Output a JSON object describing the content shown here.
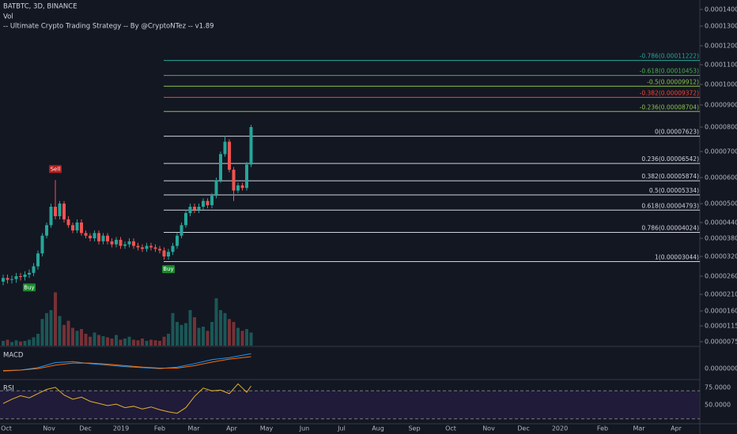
{
  "header": {
    "symbol": "BATBTC, 3D, BINANCE",
    "volume_label": "Vol",
    "strategy": "-- Ultimate Crypto Trading Strategy -- By @CryptoNTez -- v1.89"
  },
  "chart_data": {
    "type": "candlestick",
    "up_color": "#26a69a",
    "down_color": "#ef5350",
    "x_labels": [
      "Oct",
      "Nov",
      "Dec",
      "2019",
      "Feb",
      "Mar",
      "Apr",
      "May",
      "Jun",
      "Jul",
      "Aug",
      "Sep",
      "Oct",
      "Nov",
      "Dec",
      "2020",
      "Feb",
      "Mar",
      "Apr"
    ],
    "open": [
      2.45e-05,
      2.55e-05,
      2.5e-05,
      2.52e-05,
      2.6e-05,
      2.58e-05,
      2.65e-05,
      2.7e-05,
      2.9e-05,
      3.3e-05,
      3.9e-05,
      4.3e-05,
      4.9e-05,
      4.6e-05,
      5e-05,
      4.5e-05,
      4.3e-05,
      4.1e-05,
      4.4e-05,
      4e-05,
      3.9e-05,
      3.8e-05,
      4e-05,
      3.7e-05,
      3.9e-05,
      3.7e-05,
      3.6e-05,
      3.75e-05,
      3.55e-05,
      3.6e-05,
      3.7e-05,
      3.55e-05,
      3.5e-05,
      3.45e-05,
      3.55e-05,
      3.5e-05,
      3.45e-05,
      3.4e-05,
      3.2e-05,
      3.35e-05,
      3.55e-05,
      3.9e-05,
      4.3e-05,
      4.7e-05,
      4.9e-05,
      4.8e-05,
      4.9e-05,
      5.1e-05,
      4.95e-05,
      5.3e-05,
      5.9e-05,
      6.9e-05,
      7.4e-05,
      6.3e-05,
      5.5e-05,
      5.7e-05,
      5.6e-05,
      6.5e-05
    ],
    "high": [
      2.65e-05,
      2.65e-05,
      2.62e-05,
      2.7e-05,
      2.7e-05,
      2.75e-05,
      2.8e-05,
      3e-05,
      3.4e-05,
      4e-05,
      4.4e-05,
      5e-05,
      5.9e-05,
      5.1e-05,
      5.1e-05,
      4.6e-05,
      4.4e-05,
      4.5e-05,
      4.5e-05,
      4.1e-05,
      4e-05,
      4.1e-05,
      4.1e-05,
      4e-05,
      4e-05,
      3.8e-05,
      3.85e-05,
      3.85e-05,
      3.7e-05,
      3.8e-05,
      3.8e-05,
      3.65e-05,
      3.6e-05,
      3.65e-05,
      3.65e-05,
      3.6e-05,
      3.55e-05,
      3.5e-05,
      3.45e-05,
      3.65e-05,
      4e-05,
      4.4e-05,
      4.8e-05,
      5e-05,
      5e-05,
      5e-05,
      5.2e-05,
      5.2e-05,
      5.4e-05,
      6e-05,
      7e-05,
      7.65e-05,
      7.5e-05,
      6.4e-05,
      5.8e-05,
      5.8e-05,
      6.6e-05,
      8.1e-05
    ],
    "low": [
      2.35e-05,
      2.4e-05,
      2.4e-05,
      2.42e-05,
      2.48e-05,
      2.48e-05,
      2.55e-05,
      2.6e-05,
      2.8e-05,
      3.2e-05,
      3.8e-05,
      4.2e-05,
      4.5e-05,
      4.5e-05,
      4.4e-05,
      4.2e-05,
      4e-05,
      4e-05,
      3.9e-05,
      3.8e-05,
      3.7e-05,
      3.7e-05,
      3.6e-05,
      3.6e-05,
      3.6e-05,
      3.5e-05,
      3.5e-05,
      3.45e-05,
      3.45e-05,
      3.5e-05,
      3.45e-05,
      3.4e-05,
      3.35e-05,
      3.35e-05,
      3.4e-05,
      3.35e-05,
      3.3e-05,
      3.1e-05,
      3.1e-05,
      3.25e-05,
      3.45e-05,
      3.8e-05,
      4.2e-05,
      4.6e-05,
      4.7e-05,
      4.7e-05,
      4.8e-05,
      4.85e-05,
      4.85e-05,
      5.2e-05,
      5.8e-05,
      6.8e-05,
      6.2e-05,
      5.1e-05,
      5.4e-05,
      5.5e-05,
      5.5e-05,
      6.4e-05
    ],
    "close": [
      2.55e-05,
      2.5e-05,
      2.52e-05,
      2.6e-05,
      2.58e-05,
      2.65e-05,
      2.7e-05,
      2.9e-05,
      3.3e-05,
      3.9e-05,
      4.3e-05,
      4.9e-05,
      4.6e-05,
      5e-05,
      4.5e-05,
      4.3e-05,
      4.1e-05,
      4.4e-05,
      4e-05,
      3.9e-05,
      3.8e-05,
      4e-05,
      3.7e-05,
      3.9e-05,
      3.7e-05,
      3.6e-05,
      3.75e-05,
      3.55e-05,
      3.6e-05,
      3.7e-05,
      3.55e-05,
      3.5e-05,
      3.45e-05,
      3.55e-05,
      3.5e-05,
      3.45e-05,
      3.4e-05,
      3.2e-05,
      3.35e-05,
      3.55e-05,
      3.9e-05,
      4.3e-05,
      4.7e-05,
      4.9e-05,
      4.8e-05,
      4.9e-05,
      5.1e-05,
      4.95e-05,
      5.3e-05,
      5.9e-05,
      6.9e-05,
      7.4e-05,
      6.3e-05,
      5.5e-05,
      5.7e-05,
      5.6e-05,
      6.5e-05,
      8e-05
    ],
    "volume": [
      8,
      10,
      6,
      9,
      7,
      8,
      10,
      14,
      20,
      45,
      55,
      60,
      90,
      50,
      35,
      42,
      30,
      25,
      28,
      20,
      15,
      22,
      18,
      16,
      14,
      12,
      18,
      10,
      12,
      15,
      10,
      9,
      12,
      8,
      10,
      9,
      8,
      15,
      20,
      55,
      40,
      35,
      38,
      60,
      48,
      30,
      32,
      25,
      40,
      80,
      60,
      55,
      45,
      40,
      30,
      25,
      28,
      22
    ],
    "yticks": [
      {
        "value": 0.00014,
        "label": "0.00014000"
      },
      {
        "value": 0.00013,
        "label": "0.00013000"
      },
      {
        "value": 0.00012,
        "label": "0.00012000"
      },
      {
        "value": 0.00011,
        "label": "0.00011000"
      },
      {
        "value": 0.0001,
        "label": "0.00010000"
      },
      {
        "value": 9e-05,
        "label": "0.00009000"
      },
      {
        "value": 8e-05,
        "label": "0.00008000"
      },
      {
        "value": 7e-05,
        "label": "0.00007000"
      },
      {
        "value": 6e-05,
        "label": "0.00006000"
      },
      {
        "value": 5e-05,
        "label": "0.00005000"
      },
      {
        "value": 4.4e-05,
        "label": "0.00004400"
      },
      {
        "value": 3.8e-05,
        "label": "0.00003800"
      },
      {
        "value": 3.2e-05,
        "label": "0.00003200"
      },
      {
        "value": 2.6e-05,
        "label": "0.00002600"
      },
      {
        "value": 2.1e-05,
        "label": "0.00002100"
      },
      {
        "value": 1.6e-05,
        "label": "0.00001600"
      },
      {
        "value": 1.15e-05,
        "label": "0.00001150"
      },
      {
        "value": 7.5e-06,
        "label": "0.00000750"
      }
    ],
    "fib_levels": [
      {
        "value": 0.00011222,
        "label": "-0.786(0.00011222)",
        "color": "#26a69a"
      },
      {
        "value": 0.00010453,
        "label": "-0.618(0.00010453)",
        "color": "#4caf50"
      },
      {
        "value": 9.912e-05,
        "label": "-0.5(0.00009912)",
        "color": "#8bc34a"
      },
      {
        "value": 9.372e-05,
        "label": "-0.382(0.00009372)",
        "color": "#f44336"
      },
      {
        "value": 8.704e-05,
        "label": "-0.236(0.00008704)",
        "color": "#8bc34a"
      },
      {
        "value": 7.623e-05,
        "label": "0(0.00007623)",
        "color": "#d1d4dc"
      },
      {
        "value": 6.542e-05,
        "label": "0.236(0.00006542)",
        "color": "#d1d4dc"
      },
      {
        "value": 5.874e-05,
        "label": "0.382(0.00005874)",
        "color": "#d1d4dc"
      },
      {
        "value": 5.334e-05,
        "label": "0.5(0.00005334)",
        "color": "#d1d4dc"
      },
      {
        "value": 4.793e-05,
        "label": "0.618(0.00004793)",
        "color": "#d1d4dc"
      },
      {
        "value": 4.024e-05,
        "label": "0.786(0.00004024)",
        "color": "#d1d4dc"
      },
      {
        "value": 3.044e-05,
        "label": "1(0.00003044)",
        "color": "#d1d4dc"
      }
    ],
    "signals": [
      {
        "label": "Buy",
        "index": 6,
        "color": "#1b8a2e",
        "side": "below"
      },
      {
        "label": "Sell",
        "index": 12,
        "color": "#b71c1c",
        "side": "above"
      },
      {
        "label": "Buy",
        "index": 38,
        "color": "#1b8a2e",
        "side": "below"
      }
    ],
    "macd": {
      "label": "MACD",
      "ylim": [
        -2.2e-06,
        4.3e-06
      ],
      "yticks": [
        {
          "value": 0,
          "label": "0.00000000"
        }
      ],
      "x": [
        0,
        4,
        8,
        12,
        16,
        20,
        24,
        28,
        32,
        36,
        40,
        44,
        48,
        52,
        57
      ],
      "series": [
        {
          "color": "#2196f3",
          "values": [
            -5e-07,
            -3e-07,
            2e-07,
            1.2e-06,
            1.4e-06,
            1e-06,
            7e-07,
            4e-07,
            2e-07,
            0,
            3e-07,
            1e-06,
            1.8e-06,
            2.2e-06,
            3e-06
          ]
        },
        {
          "color": "#ff6d00",
          "values": [
            -4e-07,
            -3e-07,
            0,
            7e-07,
            1.1e-06,
            1.1e-06,
            9e-07,
            6e-07,
            3e-07,
            1e-07,
            1e-07,
            6e-07,
            1.3e-06,
            1.9e-06,
            2.4e-06
          ]
        }
      ]
    },
    "rsi": {
      "label": "RSI",
      "ylim": [
        23,
        85
      ],
      "bands": [
        70,
        30
      ],
      "color": "#e1b12c",
      "yticks": [
        {
          "value": 75,
          "label": "75.0000"
        },
        {
          "value": 50,
          "label": "50.0000"
        }
      ],
      "x": [
        0,
        2,
        4,
        6,
        8,
        10,
        12,
        14,
        16,
        18,
        20,
        22,
        24,
        26,
        28,
        30,
        32,
        34,
        36,
        38,
        40,
        42,
        44,
        46,
        48,
        50,
        52,
        54,
        56,
        57
      ],
      "values": [
        52,
        58,
        63,
        60,
        66,
        72,
        75,
        64,
        58,
        61,
        55,
        52,
        49,
        51,
        46,
        48,
        44,
        47,
        43,
        40,
        38,
        46,
        62,
        74,
        70,
        71,
        66,
        80,
        68,
        77
      ]
    }
  }
}
